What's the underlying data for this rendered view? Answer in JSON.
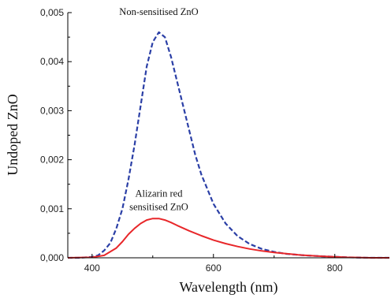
{
  "chart_data": {
    "type": "line",
    "title": "",
    "xlabel": "Wavelength (nm)",
    "ylabel": "Undoped ZnO",
    "xlim": [
      360,
      890
    ],
    "ylim": [
      0,
      0.005
    ],
    "grid": false,
    "x_ticks": [
      400,
      600,
      800
    ],
    "x_tick_labels": [
      "400",
      "600",
      "800"
    ],
    "y_ticks": [
      0,
      0.001,
      0.002,
      0.003,
      0.004,
      0.005
    ],
    "y_tick_labels": [
      "0,000",
      "0,001",
      "0,002",
      "0,003",
      "0,004",
      "0,005"
    ],
    "colors": {
      "non_sensitised": "#2b3fa6",
      "alizarin": "#e8272a"
    },
    "series": [
      {
        "key": "non_sensitised",
        "style": "dashed",
        "x": [
          360,
          380,
          400,
          410,
          420,
          430,
          440,
          450,
          460,
          470,
          480,
          490,
          500,
          510,
          520,
          530,
          540,
          550,
          560,
          570,
          580,
          590,
          600,
          620,
          640,
          660,
          680,
          700,
          720,
          750,
          780,
          820,
          860,
          890
        ],
        "y": [
          0.0,
          0.0,
          2e-05,
          5e-05,
          0.00015,
          0.0003,
          0.0006,
          0.001,
          0.0016,
          0.0023,
          0.0031,
          0.0039,
          0.0044,
          0.0046,
          0.0045,
          0.0041,
          0.0036,
          0.0031,
          0.0026,
          0.0021,
          0.0017,
          0.0014,
          0.0011,
          0.0007,
          0.00044,
          0.00028,
          0.00018,
          0.00012,
          8e-05,
          5e-05,
          3e-05,
          1e-05,
          0.0,
          0.0
        ]
      },
      {
        "key": "alizarin",
        "style": "solid",
        "x": [
          360,
          400,
          420,
          440,
          450,
          460,
          470,
          480,
          490,
          500,
          510,
          520,
          530,
          540,
          560,
          580,
          600,
          620,
          640,
          660,
          680,
          700,
          740,
          780,
          820,
          860,
          890
        ],
        "y": [
          0.0,
          1e-05,
          5e-05,
          0.0002,
          0.00033,
          0.00048,
          0.0006,
          0.0007,
          0.00077,
          0.0008,
          0.0008,
          0.00077,
          0.00072,
          0.00066,
          0.00055,
          0.00045,
          0.00036,
          0.00029,
          0.00023,
          0.00018,
          0.00014,
          0.00011,
          6e-05,
          3e-05,
          1e-05,
          0.0,
          0.0
        ]
      }
    ],
    "annotations": [
      {
        "key": "non_sensitised_label",
        "lines": [
          "Non-sensitised ZnO"
        ],
        "x": 510,
        "y": 0.00495
      },
      {
        "key": "alizarin_label",
        "lines": [
          "Alizarin red",
          "sensitised ZnO"
        ],
        "x": 510,
        "y": 0.00125
      }
    ]
  }
}
